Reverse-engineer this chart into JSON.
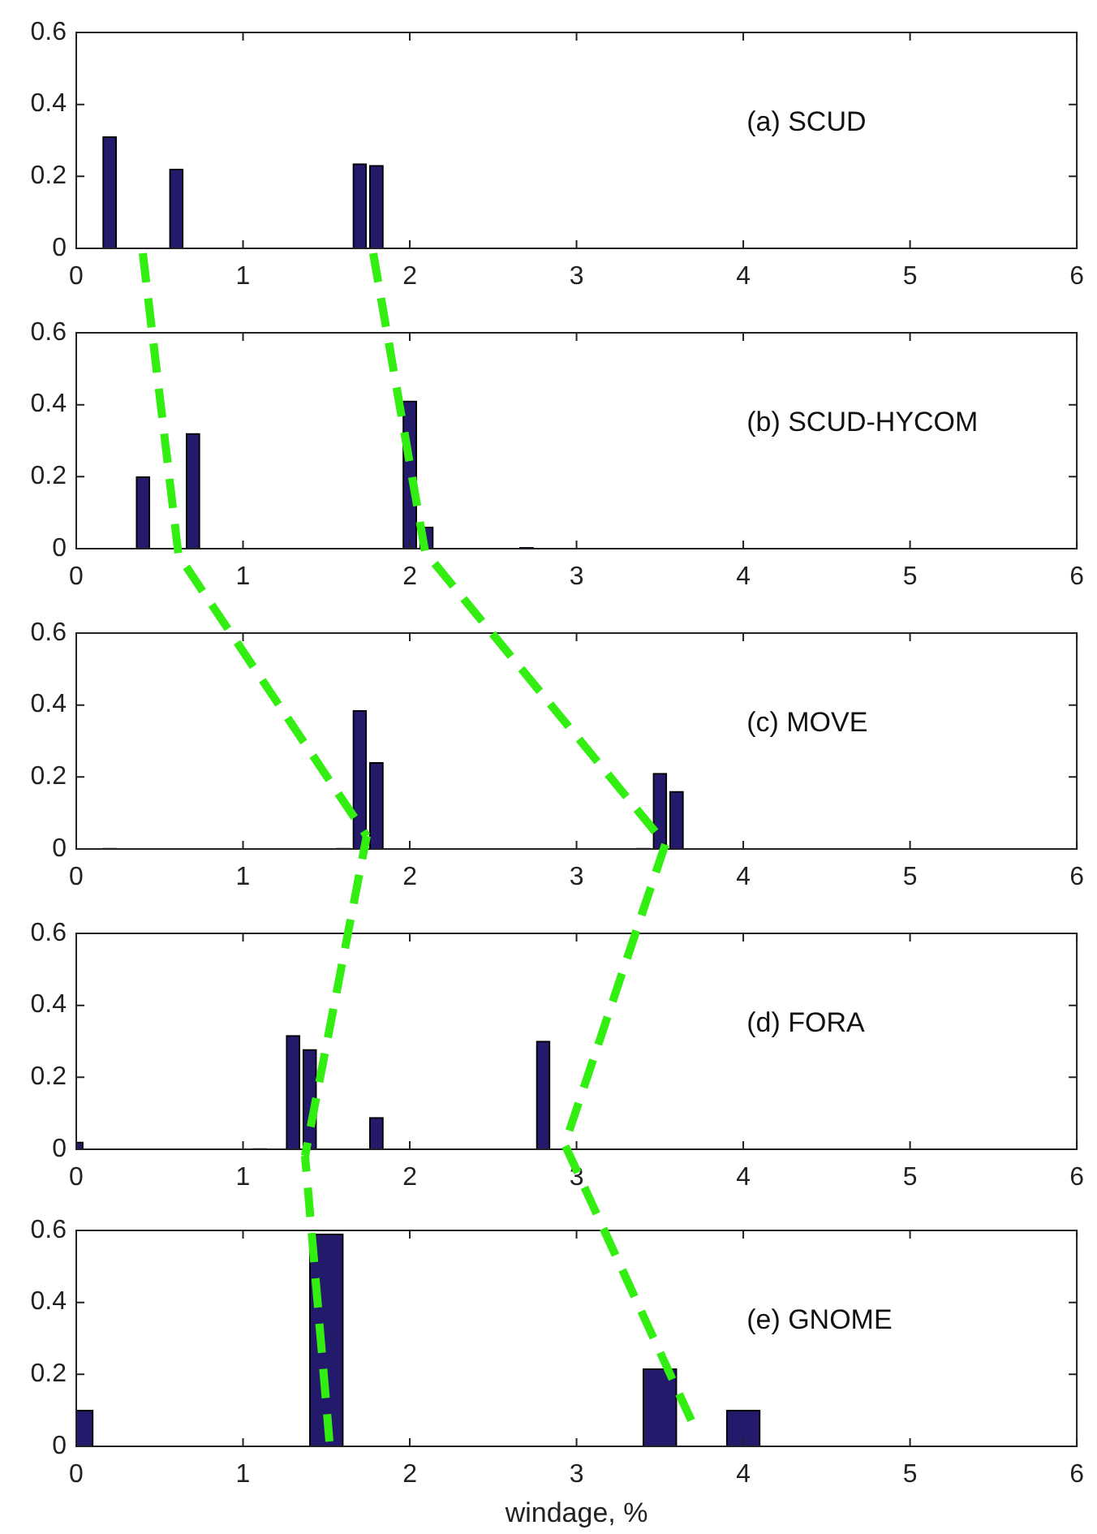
{
  "chart_data": [
    {
      "type": "bar",
      "x": [
        0.2,
        0.6,
        1.7,
        1.8
      ],
      "values": [
        0.31,
        0.22,
        0.235,
        0.23
      ],
      "color": "#241a6b",
      "xlim": [
        0,
        6
      ],
      "xticks": [
        0,
        1,
        2,
        3,
        4,
        5,
        6
      ],
      "ylim": [
        0,
        0.6
      ],
      "yticks": [
        0,
        0.2,
        0.4,
        0.6
      ],
      "annotations": [
        "(a) SCUD"
      ]
    },
    {
      "type": "bar",
      "x": [
        0.4,
        0.7,
        2.0,
        2.1,
        2.7
      ],
      "values": [
        0.2,
        0.32,
        0.41,
        0.06,
        0.003
      ],
      "color": "#241a6b",
      "xlim": [
        0,
        6
      ],
      "xticks": [
        0,
        1,
        2,
        3,
        4,
        5,
        6
      ],
      "ylim": [
        0,
        0.6
      ],
      "yticks": [
        0,
        0.2,
        0.4,
        0.6
      ],
      "annotations": [
        "(b) SCUD-HYCOM"
      ]
    },
    {
      "type": "bar",
      "x": [
        0.2,
        1.6,
        1.7,
        1.8,
        3.4,
        3.5,
        3.6
      ],
      "values": [
        0.002,
        0.002,
        0.385,
        0.24,
        0.002,
        0.21,
        0.16
      ],
      "color": "#241a6b",
      "xlim": [
        0,
        6
      ],
      "xticks": [
        0,
        1,
        2,
        3,
        4,
        5,
        6
      ],
      "ylim": [
        0,
        0.6
      ],
      "yticks": [
        0,
        0.2,
        0.4,
        0.6
      ],
      "annotations": [
        "(c) MOVE"
      ]
    },
    {
      "type": "bar",
      "x": [
        0.0,
        1.1,
        1.3,
        1.4,
        1.8,
        2.8
      ],
      "values": [
        0.02,
        0.002,
        0.316,
        0.277,
        0.088,
        0.3
      ],
      "color": "#241a6b",
      "xlim": [
        0,
        6
      ],
      "xticks": [
        0,
        1,
        2,
        3,
        4,
        5,
        6
      ],
      "ylim": [
        0,
        0.6
      ],
      "yticks": [
        0,
        0.2,
        0.4,
        0.6
      ],
      "annotations": [
        "(d) FORA"
      ]
    },
    {
      "type": "bar",
      "x": [
        0.0,
        1.5,
        3.5,
        4.0
      ],
      "values": [
        0.1,
        0.59,
        0.215,
        0.1
      ],
      "color": "#241a6b",
      "xlim": [
        0,
        6
      ],
      "xticks": [
        0,
        1,
        2,
        3,
        4,
        5,
        6
      ],
      "ylim": [
        0,
        0.6
      ],
      "yticks": [
        0,
        0.2,
        0.4,
        0.6
      ],
      "annotations": [
        "(e) GNOME"
      ],
      "xlabel": "windage, %"
    }
  ]
}
